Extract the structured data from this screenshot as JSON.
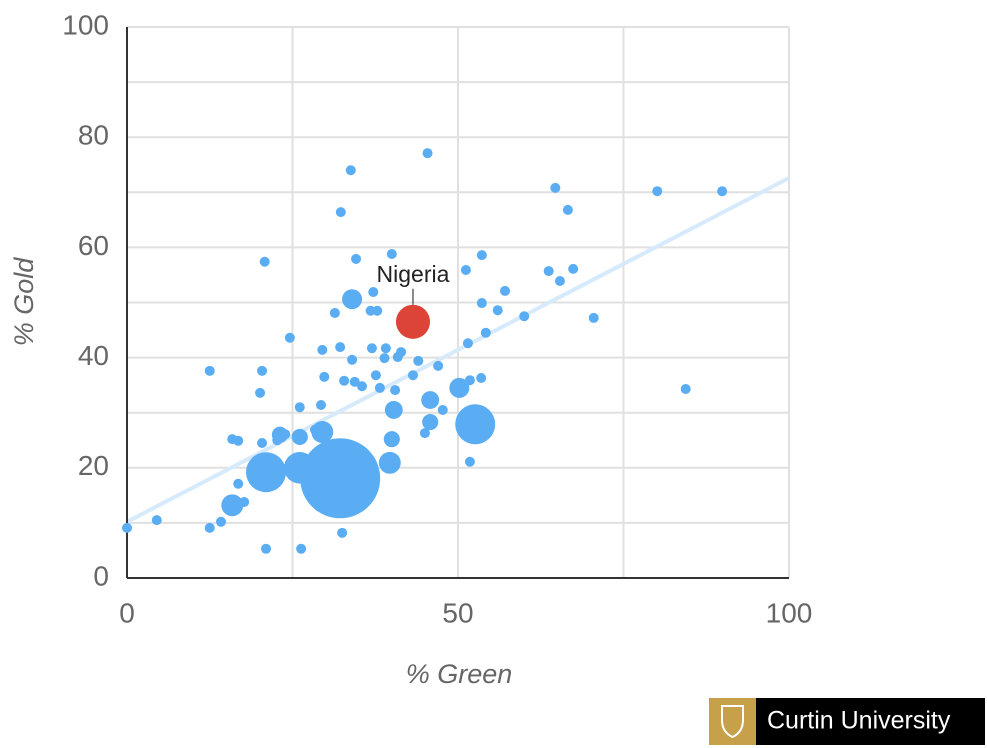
{
  "chart_data": {
    "type": "bubble",
    "x_label": "% Green",
    "y_label": "% Gold",
    "xlim": [
      0,
      100
    ],
    "ylim": [
      0,
      100
    ],
    "xticks": [
      0,
      50,
      100
    ],
    "yticks": [
      0,
      20,
      40,
      60,
      80,
      100
    ],
    "xgrid": [
      25,
      75
    ],
    "ygrid": [
      10,
      30,
      50,
      70,
      90
    ],
    "grid": true,
    "trendline": {
      "color": "#d6eafb",
      "x": [
        0,
        100
      ],
      "y": [
        10.2,
        72.6
      ]
    },
    "series": [
      {
        "color": "#5aadf2",
        "x": [
          0,
          4.5,
          12.5,
          12.5,
          14.2,
          15.9,
          16.8,
          16.8,
          17.7,
          20.4,
          20.1,
          20.8,
          21.0,
          20.4,
          24.6,
          26.1,
          26.3,
          29.5,
          29.3,
          29.8,
          31.4,
          32.3,
          33.8,
          32.5,
          34.6,
          32.2,
          34.0,
          34.4,
          35.5,
          32.8,
          37.2,
          36.8,
          37.8,
          37.0,
          39.1,
          38.9,
          37.6,
          40.0,
          38.2,
          40.9,
          41.4,
          40.5,
          43.2,
          44.0,
          45.4,
          47.0,
          47.7,
          45.0,
          51.2,
          51.5,
          51.8,
          53.6,
          54.2,
          53.5,
          53.6,
          56.0,
          57.1,
          60.0,
          51.8,
          64.7,
          66.6,
          63.7,
          65.4,
          67.4,
          70.5,
          80.1,
          89.9,
          84.4,
          22.7,
          23.9,
          28.4,
          34.0,
          45.8,
          50.2,
          15.9,
          39.7,
          40.0,
          40.3,
          45.8,
          23.1,
          26.1,
          29.5,
          21.0,
          32.2,
          26.1,
          52.6
        ],
        "values": [
          9.1,
          10.5,
          37.6,
          9.1,
          10.2,
          25.2,
          24.9,
          17.1,
          13.8,
          37.6,
          33.6,
          57.4,
          5.3,
          24.5,
          43.6,
          31.0,
          5.3,
          41.4,
          31.4,
          36.5,
          48.1,
          66.4,
          74.0,
          8.2,
          57.9,
          41.9,
          39.6,
          35.6,
          34.8,
          35.8,
          51.9,
          48.5,
          48.5,
          41.7,
          41.7,
          39.9,
          36.8,
          58.8,
          34.5,
          40.1,
          41.0,
          34.1,
          36.8,
          39.4,
          77.1,
          38.5,
          30.5,
          26.3,
          55.9,
          42.6,
          35.9,
          49.9,
          44.5,
          36.3,
          58.6,
          48.6,
          52.1,
          47.5,
          21.1,
          70.8,
          66.8,
          55.7,
          53.9,
          56.1,
          47.2,
          70.2,
          70.2,
          34.3,
          25.0,
          26.1,
          26.9,
          50.6,
          32.3,
          34.5,
          13.2,
          20.9,
          25.2,
          30.5,
          28.3,
          26.0,
          25.6,
          26.5,
          19.2,
          18.1,
          20.0,
          27.9
        ],
        "sizes": [
          1,
          1,
          1,
          1,
          1,
          1,
          1,
          1,
          1,
          1,
          1,
          1,
          1,
          1,
          1,
          1,
          1,
          1,
          1,
          1,
          1,
          1,
          1,
          1,
          1,
          1,
          1,
          1,
          1,
          1,
          1,
          1,
          1,
          1,
          1,
          1,
          1,
          1,
          1,
          1,
          1,
          1,
          1,
          1,
          1,
          1,
          1,
          1,
          1,
          1,
          1,
          1,
          1,
          1,
          1,
          1,
          1,
          1,
          1,
          1,
          1,
          1,
          1,
          1,
          1,
          1,
          1,
          1,
          1,
          1,
          1,
          4,
          3.2,
          4,
          4.8,
          4.8,
          2.6,
          3.2,
          2.6,
          2.6,
          2.6,
          4.8,
          16,
          64,
          10,
          16
        ]
      },
      {
        "name": "Nigeria",
        "color": "#db4437",
        "x": [
          43.2
        ],
        "values": [
          46.5
        ],
        "sizes": [
          11.6
        ]
      }
    ]
  },
  "logo": {
    "text": "Curtin University"
  }
}
